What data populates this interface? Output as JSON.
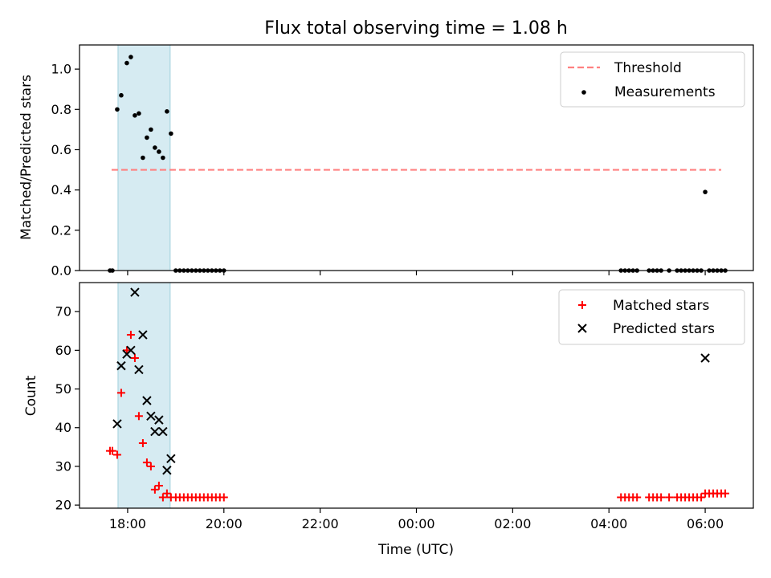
{
  "chart_data": [
    {
      "type": "scatter",
      "title": "Flux total observing time = 1.08 h",
      "xlabel": "",
      "ylabel": "Matched/Predicted stars",
      "ylim": [
        0,
        1.12
      ],
      "yticks": [
        "0.0",
        "0.2",
        "0.4",
        "0.6",
        "0.8",
        "1.0"
      ],
      "ytick_values": [
        0,
        0.2,
        0.4,
        0.6,
        0.8,
        1.0
      ],
      "highlight_span": [
        "17:48",
        "18:53"
      ],
      "legend": {
        "placement": "upper right",
        "entries": [
          "Threshold",
          "Measurements"
        ]
      },
      "threshold": {
        "name": "Threshold",
        "value": 0.5,
        "x_range": [
          "17:40",
          "06:20"
        ],
        "color": "#ff8080"
      },
      "series": [
        {
          "name": "Measurements",
          "color": "#000000",
          "points": [
            [
              "17:38",
              0.0
            ],
            [
              "17:41",
              0.0
            ],
            [
              "17:47",
              0.8
            ],
            [
              "17:52",
              0.87
            ],
            [
              "17:59",
              1.03
            ],
            [
              "18:04",
              1.06
            ],
            [
              "18:09",
              0.77
            ],
            [
              "18:14",
              0.78
            ],
            [
              "18:19",
              0.56
            ],
            [
              "18:24",
              0.66
            ],
            [
              "18:29",
              0.7
            ],
            [
              "18:34",
              0.61
            ],
            [
              "18:39",
              0.59
            ],
            [
              "18:44",
              0.56
            ],
            [
              "18:49",
              0.79
            ],
            [
              "18:54",
              0.68
            ],
            [
              "19:00",
              0.0
            ],
            [
              "19:05",
              0.0
            ],
            [
              "19:10",
              0.0
            ],
            [
              "19:15",
              0.0
            ],
            [
              "19:20",
              0.0
            ],
            [
              "19:25",
              0.0
            ],
            [
              "19:30",
              0.0
            ],
            [
              "19:35",
              0.0
            ],
            [
              "19:40",
              0.0
            ],
            [
              "19:45",
              0.0
            ],
            [
              "19:50",
              0.0
            ],
            [
              "19:55",
              0.0
            ],
            [
              "20:00",
              0.0
            ],
            [
              "04:15",
              0.0
            ],
            [
              "04:20",
              0.0
            ],
            [
              "04:25",
              0.0
            ],
            [
              "04:30",
              0.0
            ],
            [
              "04:35",
              0.0
            ],
            [
              "04:50",
              0.0
            ],
            [
              "04:55",
              0.0
            ],
            [
              "05:00",
              0.0
            ],
            [
              "05:05",
              0.0
            ],
            [
              "05:15",
              0.0
            ],
            [
              "05:25",
              0.0
            ],
            [
              "05:30",
              0.0
            ],
            [
              "05:35",
              0.0
            ],
            [
              "05:40",
              0.0
            ],
            [
              "05:45",
              0.0
            ],
            [
              "05:50",
              0.0
            ],
            [
              "05:55",
              0.0
            ],
            [
              "06:00",
              0.39
            ],
            [
              "06:05",
              0.0
            ],
            [
              "06:10",
              0.0
            ],
            [
              "06:15",
              0.0
            ],
            [
              "06:20",
              0.0
            ],
            [
              "06:25",
              0.0
            ]
          ]
        }
      ]
    },
    {
      "type": "scatter",
      "title": "",
      "xlabel": "Time (UTC)",
      "ylabel": "Count",
      "ylim": [
        19.2,
        77.5
      ],
      "yticks": [
        "20",
        "30",
        "40",
        "50",
        "60",
        "70"
      ],
      "ytick_values": [
        20,
        30,
        40,
        50,
        60,
        70
      ],
      "xlim": [
        "17:00",
        "07:00"
      ],
      "xticks": [
        "18:00",
        "20:00",
        "22:00",
        "00:00",
        "02:00",
        "04:00",
        "06:00"
      ],
      "highlight_span": [
        "17:48",
        "18:53"
      ],
      "legend": {
        "placement": "upper right",
        "entries": [
          "Matched stars",
          "Predicted stars"
        ]
      },
      "series": [
        {
          "name": "Matched stars",
          "marker": "+",
          "color": "#ff0000",
          "points": [
            [
              "17:38",
              34
            ],
            [
              "17:41",
              34
            ],
            [
              "17:47",
              33
            ],
            [
              "17:52",
              49
            ],
            [
              "17:59",
              60
            ],
            [
              "18:04",
              64
            ],
            [
              "18:09",
              58
            ],
            [
              "18:14",
              43
            ],
            [
              "18:19",
              36
            ],
            [
              "18:24",
              31
            ],
            [
              "18:29",
              30
            ],
            [
              "18:34",
              24
            ],
            [
              "18:39",
              25
            ],
            [
              "18:44",
              22
            ],
            [
              "18:49",
              23
            ],
            [
              "18:54",
              22
            ],
            [
              "19:00",
              22
            ],
            [
              "19:05",
              22
            ],
            [
              "19:10",
              22
            ],
            [
              "19:15",
              22
            ],
            [
              "19:20",
              22
            ],
            [
              "19:25",
              22
            ],
            [
              "19:30",
              22
            ],
            [
              "19:35",
              22
            ],
            [
              "19:40",
              22
            ],
            [
              "19:45",
              22
            ],
            [
              "19:50",
              22
            ],
            [
              "19:55",
              22
            ],
            [
              "20:00",
              22
            ],
            [
              "04:15",
              22
            ],
            [
              "04:20",
              22
            ],
            [
              "04:25",
              22
            ],
            [
              "04:30",
              22
            ],
            [
              "04:35",
              22
            ],
            [
              "04:50",
              22
            ],
            [
              "04:55",
              22
            ],
            [
              "05:00",
              22
            ],
            [
              "05:05",
              22
            ],
            [
              "05:15",
              22
            ],
            [
              "05:25",
              22
            ],
            [
              "05:30",
              22
            ],
            [
              "05:35",
              22
            ],
            [
              "05:40",
              22
            ],
            [
              "05:45",
              22
            ],
            [
              "05:50",
              22
            ],
            [
              "05:55",
              22
            ],
            [
              "06:00",
              23
            ],
            [
              "06:05",
              23
            ],
            [
              "06:10",
              23
            ],
            [
              "06:15",
              23
            ],
            [
              "06:20",
              23
            ],
            [
              "06:25",
              23
            ]
          ]
        },
        {
          "name": "Predicted stars",
          "marker": "x",
          "color": "#000000",
          "points": [
            [
              "17:47",
              41
            ],
            [
              "17:52",
              56
            ],
            [
              "17:59",
              59
            ],
            [
              "18:04",
              60
            ],
            [
              "18:09",
              75
            ],
            [
              "18:14",
              55
            ],
            [
              "18:19",
              64
            ],
            [
              "18:24",
              47
            ],
            [
              "18:29",
              43
            ],
            [
              "18:34",
              39
            ],
            [
              "18:39",
              42
            ],
            [
              "18:44",
              39
            ],
            [
              "18:49",
              29
            ],
            [
              "18:54",
              32
            ],
            [
              "06:00",
              58
            ]
          ]
        }
      ]
    }
  ]
}
